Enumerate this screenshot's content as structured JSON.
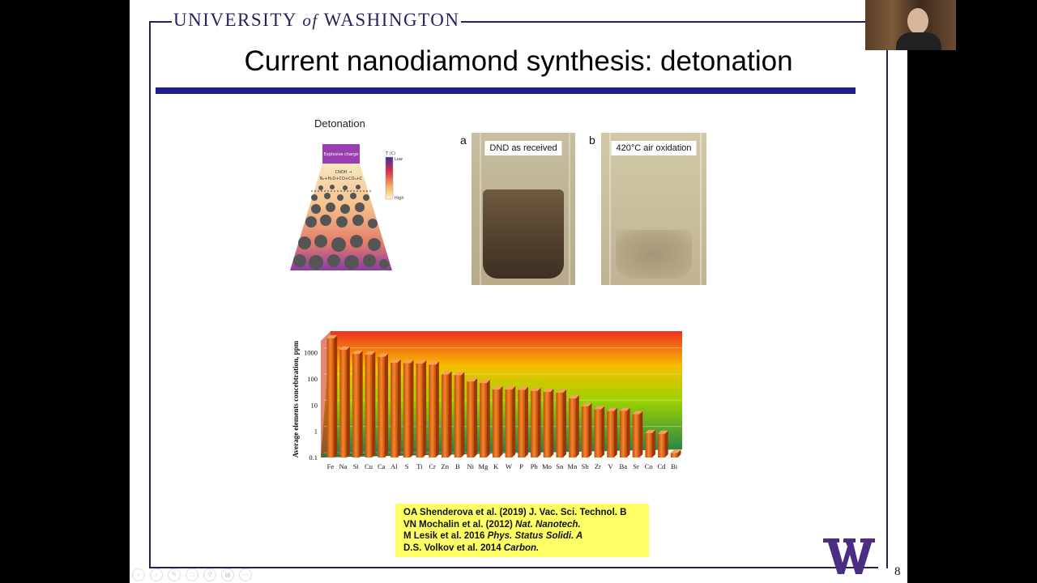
{
  "header": {
    "university_pre": "UNIVERSITY ",
    "university_of": "of",
    "university_post": " WASHINGTON"
  },
  "slide": {
    "title": "Current nanodiamond synthesis: detonation",
    "page_number": "8"
  },
  "detonation_figure": {
    "label": "Detonation",
    "top_label": "Explosive charge",
    "reaction": "CNOH →",
    "products": "N₂+H₂O+CO+CO₂+C",
    "scale_title": "T (C)",
    "scale_low": "Low",
    "scale_high": "High"
  },
  "photos": [
    {
      "letter": "a",
      "tag": "DND as received"
    },
    {
      "letter": "b",
      "tag": "420°C air oxidation"
    }
  ],
  "chart_data": {
    "type": "bar",
    "title": "",
    "xlabel": "",
    "ylabel": "Average elements concebtration, ppm",
    "yscale": "log",
    "ylim": [
      0.1,
      5000
    ],
    "yticks": [
      "0.1",
      "1",
      "10",
      "100",
      "1000"
    ],
    "categories": [
      "Fe",
      "Na",
      "Si",
      "Cu",
      "Ca",
      "Al",
      "S",
      "Ti",
      "Cr",
      "Zn",
      "B",
      "Ni",
      "Mg",
      "K",
      "W",
      "P",
      "Pb",
      "Mo",
      "Sn",
      "Mn",
      "Sb",
      "Zr",
      "V",
      "Ba",
      "Sr",
      "Co",
      "Cd",
      "Bi"
    ],
    "values": [
      3500,
      1300,
      900,
      850,
      700,
      420,
      400,
      390,
      350,
      150,
      140,
      80,
      70,
      40,
      40,
      38,
      35,
      32,
      30,
      18,
      9,
      7,
      6,
      6,
      4.5,
      0.85,
      0.8,
      0.15
    ]
  },
  "citations": [
    {
      "text": "OA Shenderova et al. (2019) J. Vac. Sci. Technol. B",
      "italic": ""
    },
    {
      "text": "VN Mochalin et al. (2012) ",
      "italic": "Nat. Nanotech."
    },
    {
      "text": "M Lesik et al. 2016 ",
      "italic": "Phys. Status Solidi. A"
    },
    {
      "text": "D.S. Volkov et al. 2014 ",
      "italic": "Carbon."
    }
  ],
  "colors": {
    "uw_purple": "#2d1e5a",
    "title_bar": "#1f1f87",
    "citation_bg": "#ffff66",
    "bar": "#e8641a"
  },
  "toolbar_icons": [
    "prev-icon",
    "next-icon",
    "pen-icon",
    "cursor-icon",
    "zoom-icon",
    "subtitles-icon",
    "more-icon"
  ]
}
